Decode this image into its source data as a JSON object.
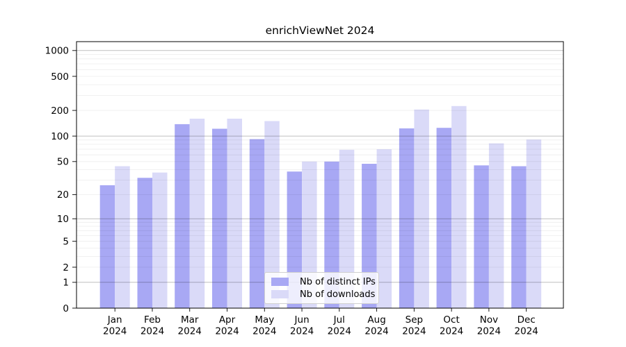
{
  "chart_data": {
    "type": "bar",
    "title": "enrichViewNet 2024",
    "categories": [
      "Jan",
      "Feb",
      "Mar",
      "Apr",
      "May",
      "Jun",
      "Jul",
      "Aug",
      "Sep",
      "Oct",
      "Nov",
      "Dec"
    ],
    "x_tick_year": "2024",
    "series": [
      {
        "name": "Nb of distinct IPs",
        "color": "#a8a8f4",
        "values": [
          26,
          32,
          138,
          122,
          92,
          38,
          50,
          47,
          123,
          125,
          45,
          44
        ]
      },
      {
        "name": "Nb of downloads",
        "color": "#dadaf8",
        "values": [
          44,
          37,
          160,
          160,
          150,
          50,
          69,
          70,
          205,
          225,
          82,
          91
        ]
      }
    ],
    "y_ticks": [
      0,
      1,
      2,
      5,
      10,
      20,
      50,
      100,
      200,
      500,
      1000
    ],
    "y_scale": "log10(value+1)",
    "ylim": [
      0,
      1270
    ],
    "grid": true,
    "legend_position": "lower center",
    "xlabel": "",
    "ylabel": ""
  },
  "colors": {
    "major_gridline": "rgba(0,0,0,0.25)",
    "minor_gridline": "rgba(0,0,0,0.075)",
    "axis": "#000000",
    "background": "#ffffff"
  }
}
